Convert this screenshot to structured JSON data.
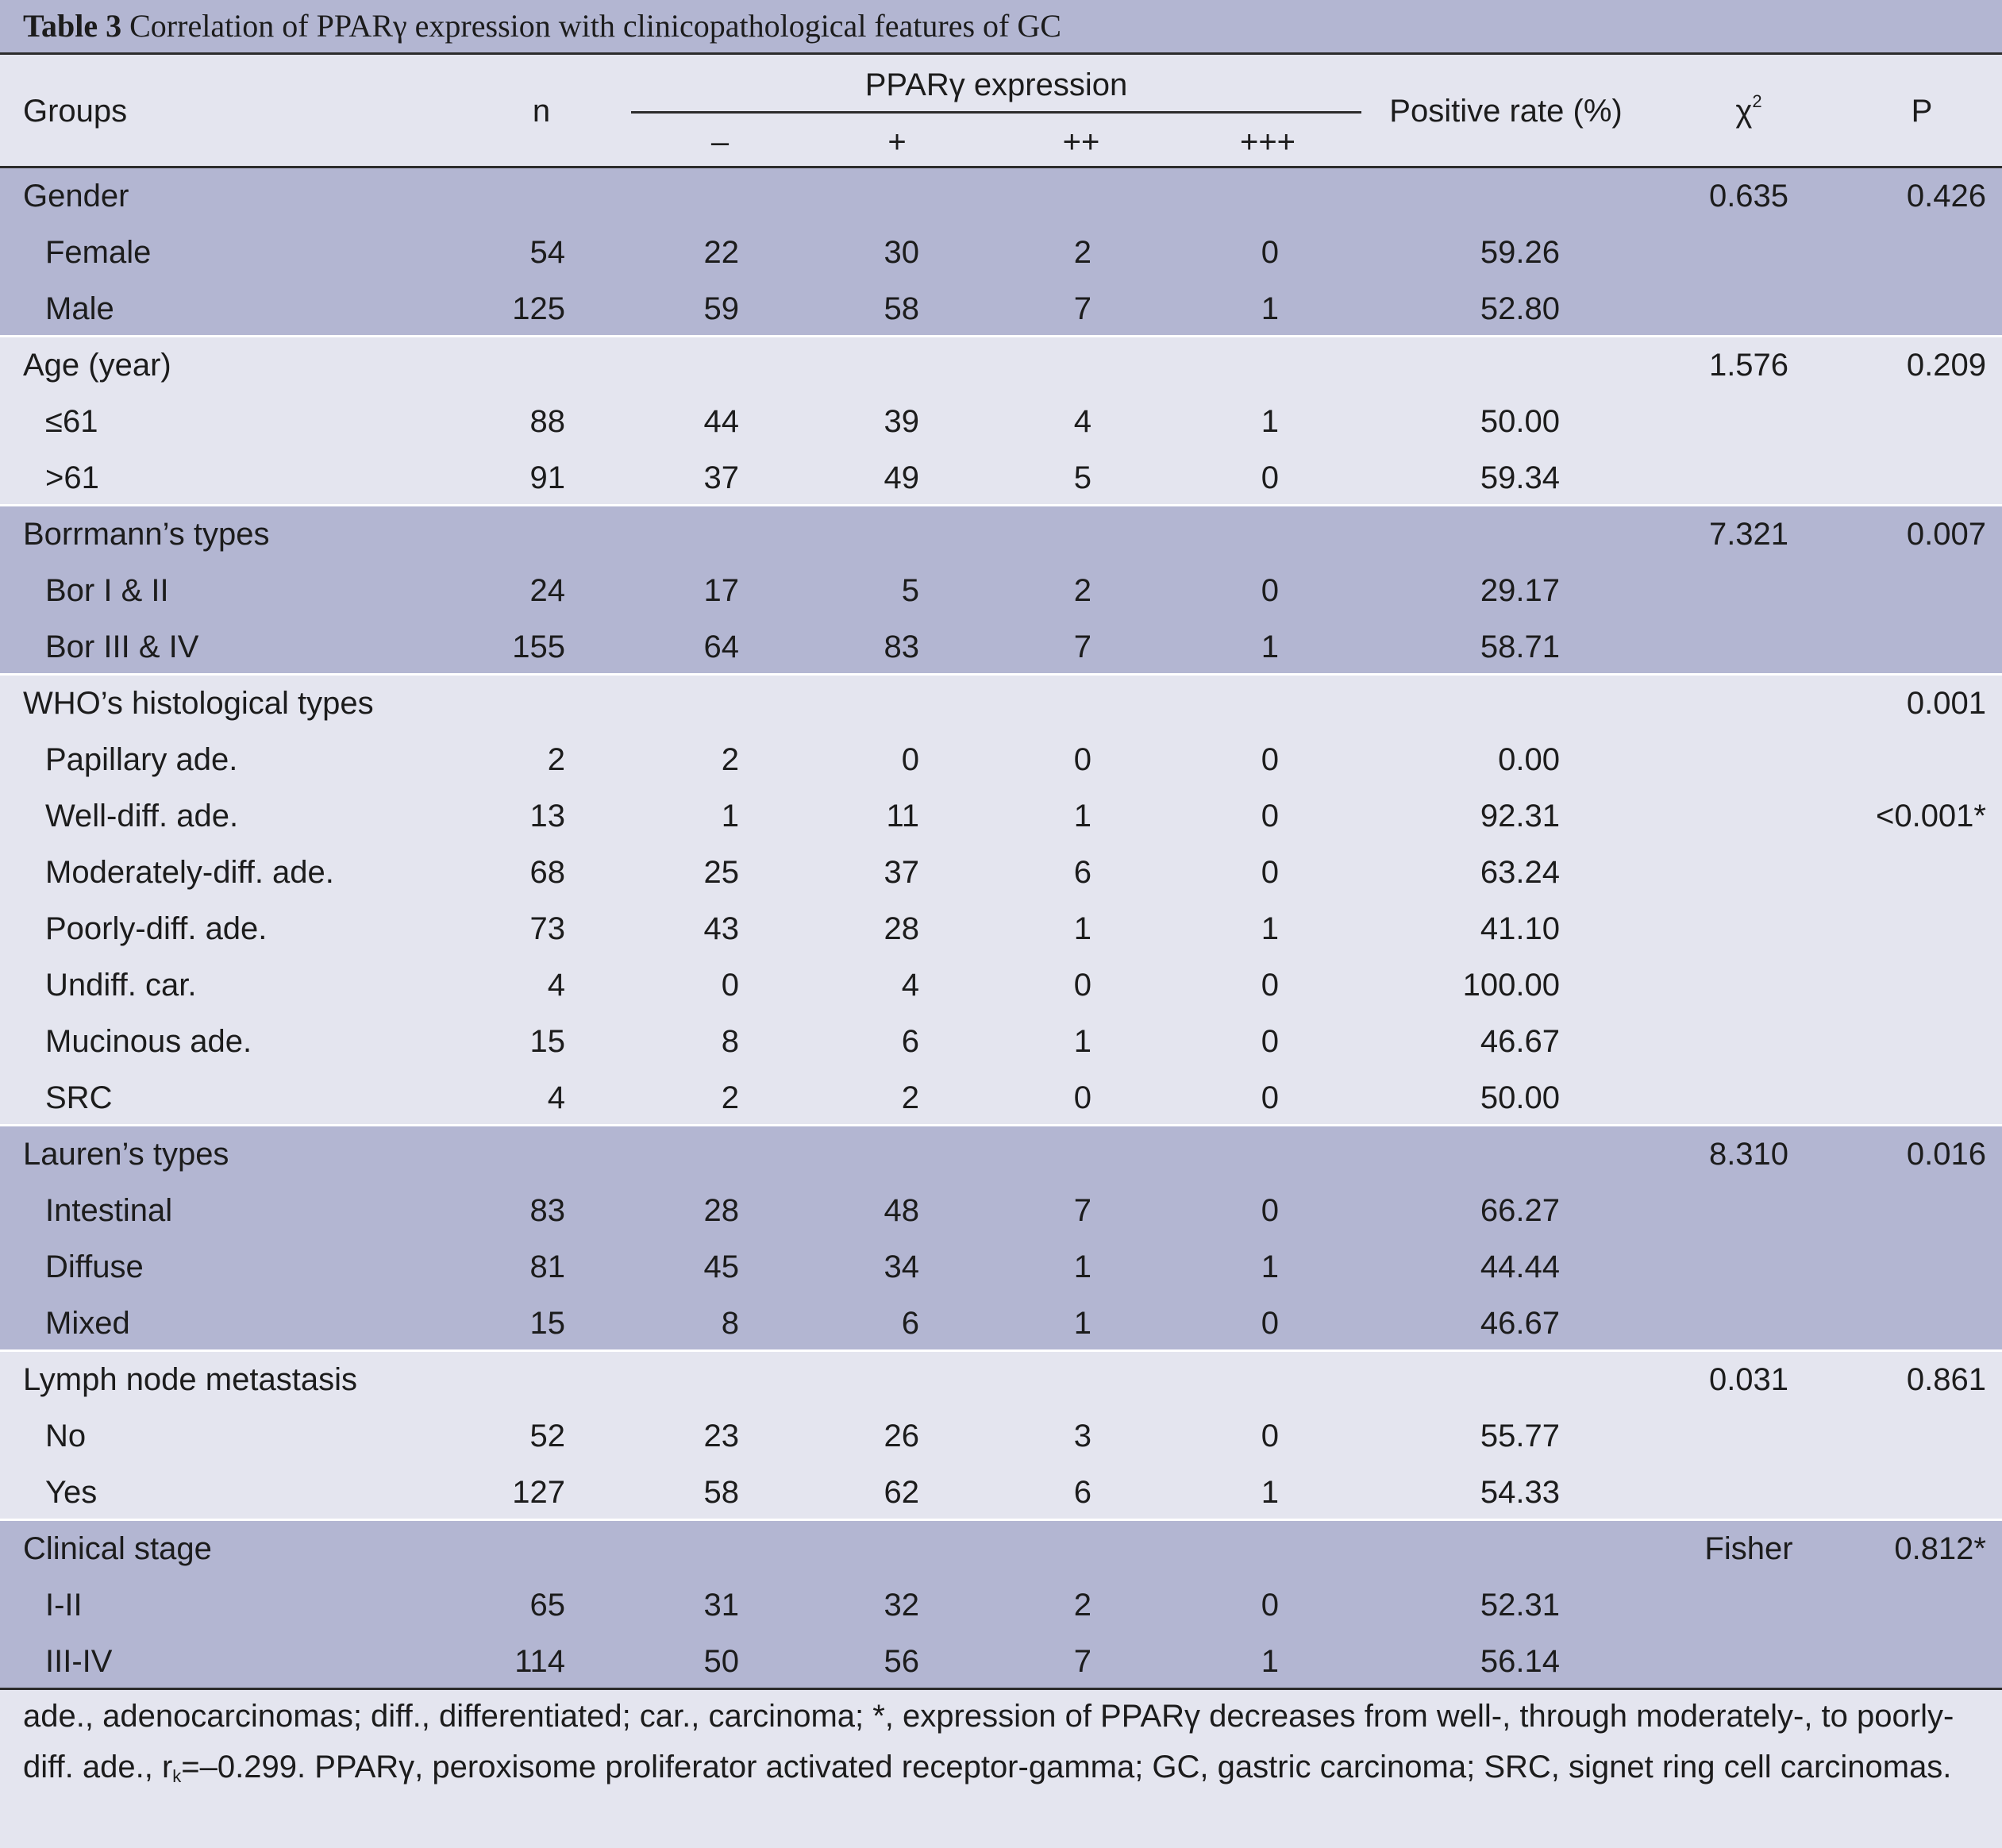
{
  "title": {
    "label": "Table 3",
    "text": "Correlation of PPARγ expression with clinicopathological features of GC"
  },
  "header": {
    "groups": "Groups",
    "n": "n",
    "expression": "PPARγ expression",
    "neg": "–",
    "plus1": "+",
    "plus2": "++",
    "plus3": "+++",
    "positive_rate": "Positive rate (%)",
    "chi": "χ",
    "chi_sup": "2",
    "p": "P"
  },
  "groups": [
    {
      "name": "Gender",
      "chi2": "0.635",
      "p": "0.426",
      "shade": "dark",
      "rows": [
        {
          "label": "Female",
          "n": "54",
          "neg": "22",
          "p1": "30",
          "p2": "2",
          "p3": "0",
          "rate": "59.26",
          "p": ""
        },
        {
          "label": "Male",
          "n": "125",
          "neg": "59",
          "p1": "58",
          "p2": "7",
          "p3": "1",
          "rate": "52.80",
          "p": ""
        }
      ]
    },
    {
      "name": "Age (year)",
      "chi2": "1.576",
      "p": "0.209",
      "shade": "light",
      "rows": [
        {
          "label": "≤61",
          "n": "88",
          "neg": "44",
          "p1": "39",
          "p2": "4",
          "p3": "1",
          "rate": "50.00",
          "p": ""
        },
        {
          "label": ">61",
          "n": "91",
          "neg": "37",
          "p1": "49",
          "p2": "5",
          "p3": "0",
          "rate": "59.34",
          "p": ""
        }
      ]
    },
    {
      "name": "Borrmann’s types",
      "chi2": "7.321",
      "p": "0.007",
      "shade": "dark",
      "rows": [
        {
          "label": "Bor I & II",
          "n": "24",
          "neg": "17",
          "p1": "5",
          "p2": "2",
          "p3": "0",
          "rate": "29.17",
          "p": ""
        },
        {
          "label": "Bor III & IV",
          "n": "155",
          "neg": "64",
          "p1": "83",
          "p2": "7",
          "p3": "1",
          "rate": "58.71",
          "p": ""
        }
      ]
    },
    {
      "name": "WHO’s histological types",
      "chi2": "",
      "p": "0.001",
      "shade": "light",
      "rows": [
        {
          "label": "Papillary ade.",
          "n": "2",
          "neg": "2",
          "p1": "0",
          "p2": "0",
          "p3": "0",
          "rate": "0.00",
          "p": ""
        },
        {
          "label": "Well-diff. ade.",
          "n": "13",
          "neg": "1",
          "p1": "11",
          "p2": "1",
          "p3": "0",
          "rate": "92.31",
          "p": "<0.001*"
        },
        {
          "label": "Moderately-diff. ade.",
          "n": "68",
          "neg": "25",
          "p1": "37",
          "p2": "6",
          "p3": "0",
          "rate": "63.24",
          "p": ""
        },
        {
          "label": "Poorly-diff. ade.",
          "n": "73",
          "neg": "43",
          "p1": "28",
          "p2": "1",
          "p3": "1",
          "rate": "41.10",
          "p": ""
        },
        {
          "label": "Undiff. car.",
          "n": "4",
          "neg": "0",
          "p1": "4",
          "p2": "0",
          "p3": "0",
          "rate": "100.00",
          "p": ""
        },
        {
          "label": "Mucinous ade.",
          "n": "15",
          "neg": "8",
          "p1": "6",
          "p2": "1",
          "p3": "0",
          "rate": "46.67",
          "p": ""
        },
        {
          "label": "SRC",
          "n": "4",
          "neg": "2",
          "p1": "2",
          "p2": "0",
          "p3": "0",
          "rate": "50.00",
          "p": ""
        }
      ]
    },
    {
      "name": "Lauren’s types",
      "chi2": "8.310",
      "p": "0.016",
      "shade": "dark",
      "rows": [
        {
          "label": "Intestinal",
          "n": "83",
          "neg": "28",
          "p1": "48",
          "p2": "7",
          "p3": "0",
          "rate": "66.27",
          "p": ""
        },
        {
          "label": "Diffuse",
          "n": "81",
          "neg": "45",
          "p1": "34",
          "p2": "1",
          "p3": "1",
          "rate": "44.44",
          "p": ""
        },
        {
          "label": "Mixed",
          "n": "15",
          "neg": "8",
          "p1": "6",
          "p2": "1",
          "p3": "0",
          "rate": "46.67",
          "p": ""
        }
      ]
    },
    {
      "name": "Lymph node metastasis",
      "chi2": "0.031",
      "p": "0.861",
      "shade": "light",
      "rows": [
        {
          "label": "No",
          "n": "52",
          "neg": "23",
          "p1": "26",
          "p2": "3",
          "p3": "0",
          "rate": "55.77",
          "p": ""
        },
        {
          "label": "Yes",
          "n": "127",
          "neg": "58",
          "p1": "62",
          "p2": "6",
          "p3": "1",
          "rate": "54.33",
          "p": ""
        }
      ]
    },
    {
      "name": "Clinical stage",
      "chi2": "Fisher",
      "p": "0.812*",
      "shade": "dark",
      "rows": [
        {
          "label": "I-II",
          "n": "65",
          "neg": "31",
          "p1": "32",
          "p2": "2",
          "p3": "0",
          "rate": "52.31",
          "p": ""
        },
        {
          "label": "III-IV",
          "n": "114",
          "neg": "50",
          "p1": "56",
          "p2": "7",
          "p3": "1",
          "rate": "56.14",
          "p": ""
        }
      ]
    }
  ],
  "footnote": {
    "part1": "ade., adenocarcinomas; diff., differentiated; car., carcinoma; *, expression of PPARγ decreases from well-, through moderately-, to poorly-diff. ade., r",
    "sub": "k",
    "part2": "=–0.299. PPARγ, peroxisome proliferator activated receptor-gamma; GC, gastric carcinoma; SRC, signet ring cell carcinomas."
  }
}
